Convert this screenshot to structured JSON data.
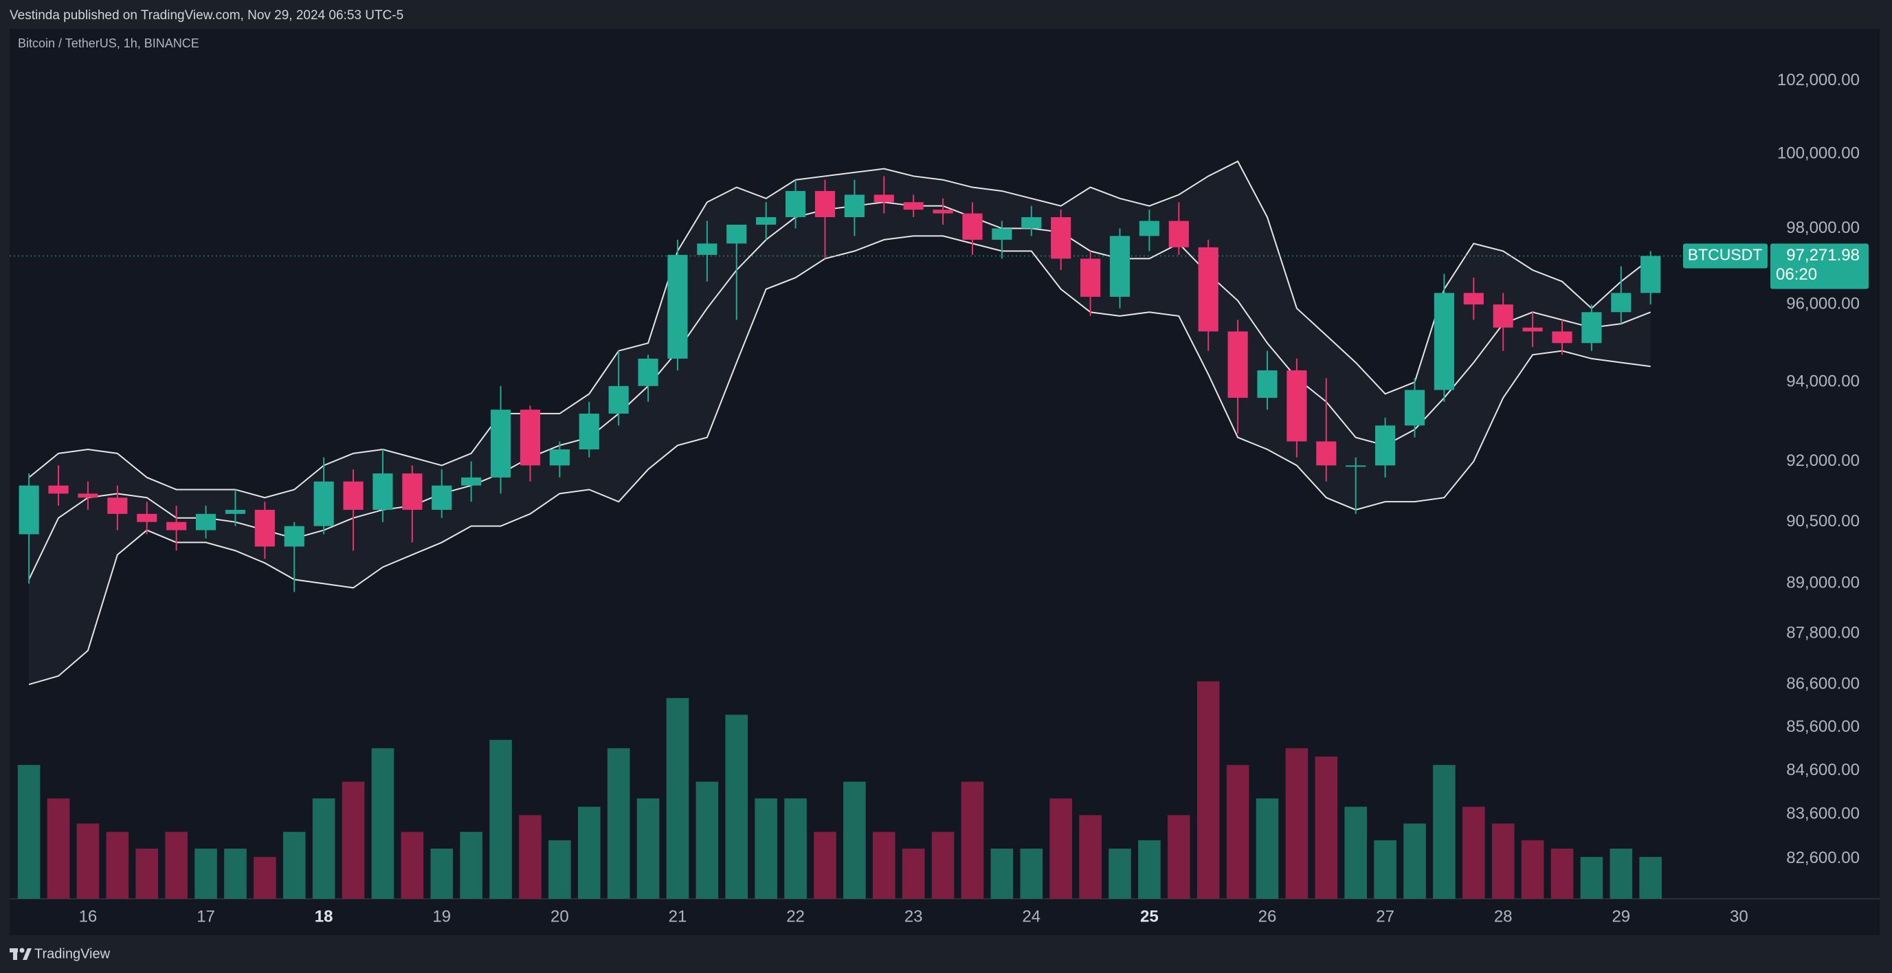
{
  "header": {
    "publisher": "Vestinda published on TradingView.com, Nov 29, 2024 06:53 UTC-5",
    "symbol_info": "Bitcoin / TetherUS, 1h, BINANCE"
  },
  "chart_data": {
    "type": "candlestick",
    "x": [
      15.5,
      15.75,
      16,
      16.25,
      16.5,
      16.75,
      17,
      17.25,
      17.5,
      17.75,
      18,
      18.25,
      18.5,
      18.75,
      19,
      19.25,
      19.5,
      19.75,
      20,
      20.25,
      20.5,
      20.75,
      21,
      21.25,
      21.5,
      21.75,
      22,
      22.25,
      22.5,
      22.75,
      23,
      23.25,
      23.5,
      23.75,
      24,
      24.25,
      24.5,
      24.75,
      25,
      25.25,
      25.5,
      25.75,
      26,
      26.25,
      26.5,
      26.75,
      27,
      27.25,
      27.5,
      27.75,
      28,
      28.25,
      28.5,
      28.75,
      29,
      29.25
    ],
    "open": [
      90200,
      91400,
      91200,
      91100,
      90700,
      90500,
      90300,
      90700,
      90800,
      89900,
      90400,
      91500,
      90800,
      91700,
      90800,
      91400,
      91600,
      93300,
      91900,
      92300,
      93200,
      93900,
      94600,
      97300,
      97600,
      98100,
      98300,
      99000,
      98300,
      98900,
      98700,
      98500,
      98400,
      97700,
      98000,
      98300,
      97200,
      96200,
      97800,
      98200,
      97500,
      95300,
      93600,
      94300,
      92500,
      91900,
      91900,
      92900,
      93800,
      96300,
      96000,
      95400,
      95300,
      95000,
      95800,
      96300
    ],
    "high": [
      91700,
      91900,
      91500,
      91400,
      91000,
      90900,
      90900,
      91300,
      91000,
      90500,
      92100,
      91800,
      92300,
      91900,
      91800,
      92000,
      93900,
      93400,
      92500,
      93500,
      94800,
      94700,
      97700,
      98200,
      98100,
      98700,
      99300,
      99300,
      99300,
      99400,
      98900,
      98800,
      98700,
      98200,
      98600,
      98500,
      97400,
      98000,
      98500,
      98700,
      97700,
      95600,
      94800,
      94600,
      94100,
      92100,
      93100,
      94100,
      96800,
      96700,
      96300,
      95800,
      95600,
      96000,
      97000,
      97400
    ],
    "low": [
      89000,
      90900,
      90800,
      90300,
      90200,
      89800,
      90100,
      90400,
      89600,
      88800,
      90200,
      89800,
      90500,
      90000,
      90600,
      91000,
      91200,
      91500,
      91600,
      92100,
      92900,
      93500,
      94300,
      96600,
      95600,
      97700,
      98000,
      97200,
      97800,
      98400,
      98300,
      98100,
      97300,
      97200,
      97800,
      96900,
      95700,
      95900,
      97400,
      97300,
      94800,
      92700,
      93300,
      92100,
      91500,
      90700,
      91600,
      92600,
      93500,
      95600,
      94800,
      94900,
      94700,
      94800,
      95500,
      96000
    ],
    "close": [
      91400,
      91200,
      91100,
      90700,
      90500,
      90300,
      90700,
      90800,
      89900,
      90400,
      91500,
      90800,
      91700,
      90800,
      91400,
      91600,
      93300,
      91900,
      92300,
      93200,
      93900,
      94600,
      97300,
      97600,
      98100,
      98300,
      99000,
      98300,
      98900,
      98700,
      98500,
      98400,
      97700,
      98000,
      98300,
      97200,
      96200,
      97800,
      98200,
      97500,
      95300,
      93600,
      94300,
      92500,
      91900,
      91900,
      92900,
      93800,
      96300,
      96000,
      95400,
      95300,
      95000,
      95800,
      96300,
      97271.98
    ],
    "volume": [
      8000,
      6000,
      4500,
      4000,
      3000,
      4000,
      3000,
      3000,
      2500,
      4000,
      6000,
      7000,
      9000,
      4000,
      3000,
      4000,
      9500,
      5000,
      3500,
      5500,
      9000,
      6000,
      12000,
      7000,
      11000,
      6000,
      6000,
      4000,
      7000,
      4000,
      3000,
      4000,
      7000,
      3000,
      3000,
      6000,
      5000,
      3000,
      3500,
      5000,
      13000,
      8000,
      6000,
      9000,
      8500,
      5500,
      3500,
      4500,
      8000,
      5500,
      4500,
      3500,
      3000,
      2500,
      3000,
      2500
    ],
    "bb_upper": [
      91600,
      92200,
      92300,
      92200,
      91600,
      91300,
      91300,
      91300,
      91100,
      91300,
      91900,
      92200,
      92300,
      92100,
      91900,
      92200,
      93200,
      93200,
      93200,
      93700,
      94800,
      95000,
      97400,
      98700,
      99100,
      98800,
      99300,
      99400,
      99500,
      99600,
      99400,
      99300,
      99100,
      99000,
      98800,
      98600,
      99100,
      98800,
      98600,
      98900,
      99400,
      99800,
      98300,
      95900,
      95200,
      94500,
      93700,
      94000,
      96400,
      97600,
      97400,
      96900,
      96600,
      95900,
      96600,
      97200
    ],
    "bb_basis": [
      89100,
      90600,
      91100,
      91200,
      91100,
      90600,
      90600,
      90500,
      90300,
      90100,
      90300,
      90600,
      90800,
      90900,
      91200,
      91400,
      91700,
      92100,
      92400,
      92600,
      93200,
      93900,
      94800,
      95900,
      96900,
      97700,
      98300,
      98500,
      98600,
      98700,
      98600,
      98600,
      98300,
      98000,
      98000,
      97900,
      97400,
      97200,
      97200,
      97600,
      96800,
      96100,
      95000,
      94100,
      93500,
      92600,
      92400,
      92800,
      93600,
      94500,
      95500,
      95800,
      95600,
      95400,
      95500,
      95800
    ],
    "bb_lower": [
      86600,
      86800,
      87400,
      89700,
      90300,
      90000,
      90000,
      89800,
      89500,
      89100,
      89000,
      88900,
      89400,
      89700,
      90000,
      90400,
      90400,
      90700,
      91200,
      91300,
      91000,
      91800,
      92400,
      92600,
      94500,
      96400,
      96700,
      97200,
      97400,
      97700,
      97800,
      97800,
      97600,
      97400,
      97400,
      96400,
      95800,
      95700,
      95800,
      95700,
      94200,
      92600,
      92300,
      91900,
      91100,
      90800,
      91000,
      91000,
      91100,
      92000,
      93600,
      94700,
      94800,
      94600,
      94500,
      94400
    ],
    "xlim": [
      15.336,
      30.19
    ],
    "xticks": [
      16,
      17,
      18,
      19,
      20,
      21,
      22,
      23,
      24,
      25,
      26,
      27,
      28,
      29,
      30
    ],
    "xticks_bold": [
      18,
      25
    ],
    "ylim": [
      81710,
      103450
    ],
    "log_scale": true,
    "yticks": [
      {
        "value": 102000,
        "label": "102,000.00"
      },
      {
        "value": 100000,
        "label": "100,000.00"
      },
      {
        "value": 98000,
        "label": "98,000.00"
      },
      {
        "value": 96000,
        "label": "96,000.00"
      },
      {
        "value": 94000,
        "label": "94,000.00"
      },
      {
        "value": 92000,
        "label": "92,000.00"
      },
      {
        "value": 90500,
        "label": "90,500.00"
      },
      {
        "value": 89000,
        "label": "89,000.00"
      },
      {
        "value": 87800,
        "label": "87,800.00"
      },
      {
        "value": 86600,
        "label": "86,600.00"
      },
      {
        "value": 85600,
        "label": "85,600.00"
      },
      {
        "value": 84600,
        "label": "84,600.00"
      },
      {
        "value": 83600,
        "label": "83,600.00"
      },
      {
        "value": 82600,
        "label": "82,600.00"
      }
    ],
    "up_color": "#22ab94",
    "down_color": "#e8336e",
    "volume_up_color": "#1b6b5f",
    "volume_down_color": "#7e1f42",
    "band_color": "#e6e6e6",
    "last_price": {
      "symbol": "BTCUSDT",
      "value": 97271.98,
      "label": "97,271.98",
      "countdown": "06:20"
    }
  },
  "footer": {
    "brand": "TradingView"
  }
}
